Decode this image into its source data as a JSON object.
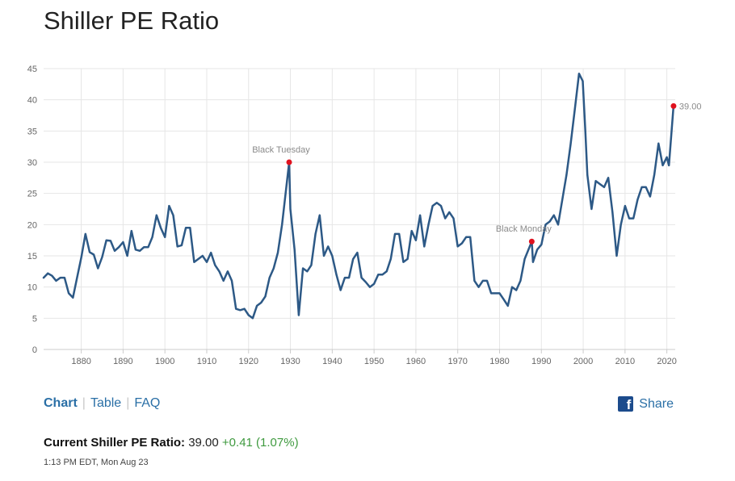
{
  "title": "Shiller PE Ratio",
  "tabs": [
    {
      "label": "Chart",
      "active": true
    },
    {
      "label": "Table",
      "active": false
    },
    {
      "label": "FAQ",
      "active": false
    }
  ],
  "share": {
    "label": "Share",
    "icon": "facebook-icon"
  },
  "current": {
    "label": "Current Shiller PE Ratio:",
    "value": "39.00",
    "change": "+0.41 (1.07%)",
    "change_color": "#3f9a3f"
  },
  "timestamp": "1:13 PM EDT, Mon Aug 23",
  "chart_data": {
    "type": "line",
    "title": "",
    "xlabel": "",
    "ylabel": "",
    "xlim": [
      1871,
      2022
    ],
    "ylim": [
      0,
      45
    ],
    "x_ticks": [
      1880,
      1890,
      1900,
      1910,
      1920,
      1930,
      1940,
      1950,
      1960,
      1970,
      1980,
      1990,
      2000,
      2010,
      2020
    ],
    "y_ticks": [
      0,
      5,
      10,
      15,
      20,
      25,
      30,
      35,
      40,
      45
    ],
    "grid": true,
    "line_color": "#2d5986",
    "marker_color": "#e0121f",
    "series": [
      {
        "x": [
          1871,
          1872,
          1873,
          1874,
          1875,
          1876,
          1877,
          1878,
          1879,
          1880,
          1881,
          1882,
          1883,
          1884,
          1885,
          1886,
          1887,
          1888,
          1889,
          1890,
          1891,
          1892,
          1893,
          1894,
          1895,
          1896,
          1897,
          1898,
          1899,
          1900,
          1901,
          1902,
          1903,
          1904,
          1905,
          1906,
          1907,
          1908,
          1909,
          1910,
          1911,
          1912,
          1913,
          1914,
          1915,
          1916,
          1917,
          1918,
          1919,
          1920,
          1921,
          1922,
          1923,
          1924,
          1925,
          1926,
          1927,
          1928,
          1929.7,
          1930,
          1931,
          1932,
          1933,
          1934,
          1935,
          1936,
          1937,
          1938,
          1939,
          1940,
          1941,
          1942,
          1943,
          1944,
          1945,
          1946,
          1947,
          1948,
          1949,
          1950,
          1951,
          1952,
          1953,
          1954,
          1955,
          1956,
          1957,
          1958,
          1959,
          1960,
          1961,
          1962,
          1963,
          1964,
          1965,
          1966,
          1967,
          1968,
          1969,
          1970,
          1971,
          1972,
          1973,
          1974,
          1975,
          1976,
          1977,
          1978,
          1979,
          1980,
          1981,
          1982,
          1983,
          1984,
          1985,
          1986,
          1987.7,
          1988,
          1989,
          1990,
          1991,
          1992,
          1993,
          1994,
          1995,
          1996,
          1997,
          1998,
          1999,
          1999.9,
          2000.5,
          2001,
          2002,
          2003,
          2004,
          2005,
          2006,
          2007,
          2008,
          2009,
          2010,
          2011,
          2012,
          2013,
          2014,
          2015,
          2016,
          2017,
          2018,
          2019,
          2020,
          2020.5,
          2021.6
        ],
        "y": [
          11.5,
          12.2,
          11.8,
          11.0,
          11.5,
          11.5,
          9.0,
          8.3,
          11.5,
          14.7,
          18.5,
          15.6,
          15.2,
          13.0,
          14.8,
          17.5,
          17.4,
          15.8,
          16.4,
          17.2,
          15.0,
          19.0,
          16.0,
          15.8,
          16.4,
          16.4,
          18.0,
          21.5,
          19.5,
          18.0,
          23.0,
          21.5,
          16.5,
          16.7,
          19.5,
          19.5,
          14.0,
          14.5,
          15.0,
          14.0,
          15.5,
          13.5,
          12.5,
          11.0,
          12.5,
          11.0,
          6.5,
          6.3,
          6.5,
          5.5,
          5.0,
          7.0,
          7.5,
          8.5,
          11.5,
          13.0,
          15.5,
          20.0,
          30.0,
          22.5,
          16.0,
          5.5,
          13.0,
          12.5,
          13.5,
          18.5,
          21.5,
          15.0,
          16.5,
          15.0,
          12.0,
          9.5,
          11.5,
          11.5,
          14.5,
          15.5,
          11.5,
          10.8,
          10.0,
          10.5,
          12.0,
          12.0,
          12.5,
          14.5,
          18.5,
          18.5,
          14.0,
          14.5,
          19.0,
          17.5,
          21.5,
          16.5,
          20.0,
          23.0,
          23.5,
          23.0,
          21.0,
          22.0,
          21.0,
          16.5,
          17.0,
          18.0,
          18.0,
          11.0,
          10.0,
          11.0,
          11.0,
          9.0,
          9.0,
          9.0,
          8.0,
          7.0,
          10.0,
          9.5,
          11.0,
          14.5,
          17.3,
          14.0,
          16.0,
          16.8,
          20.0,
          20.5,
          21.5,
          20.0,
          24.0,
          28.0,
          32.9,
          38.5,
          44.2,
          43.0,
          35.0,
          28.0,
          22.5,
          27.0,
          26.5,
          26.0,
          27.5,
          22.0,
          15.0,
          20.0,
          23.0,
          21.0,
          21.0,
          24.0,
          26.0,
          26.0,
          24.5,
          28.0,
          33.0,
          29.5,
          30.8,
          29.5,
          39.0
        ]
      }
    ],
    "annotations": [
      {
        "label": "Black Tuesday",
        "x": 1929.7,
        "y": 30.0
      },
      {
        "label": "Black Monday",
        "x": 1987.7,
        "y": 17.3
      }
    ],
    "last_value_label": "39.00"
  }
}
